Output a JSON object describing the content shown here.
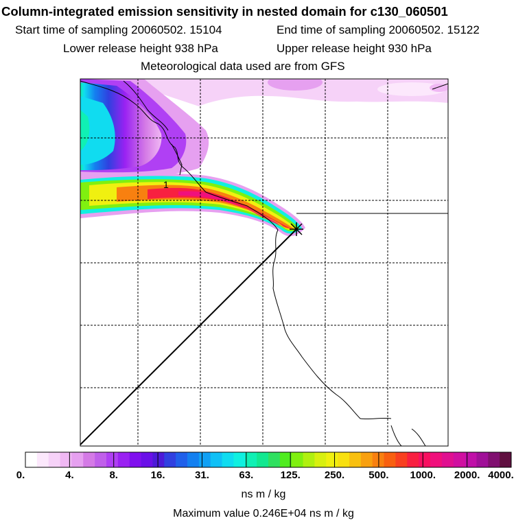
{
  "header": {
    "title": "Column-integrated emission sensitivity in nested domain for c130_060501",
    "start_time": "Start time of sampling 20060502. 15104",
    "end_time": "End time of sampling 20060502. 15122",
    "lower_height": "Lower release height  938 hPa",
    "upper_height": "Upper release height  930 hPa",
    "met_data": "Meteorological data used are from GFS"
  },
  "map": {
    "contour_label": "1"
  },
  "colorbar": {
    "labels": [
      "0.",
      "4.",
      "8.",
      "16.",
      "31.",
      "63.",
      "125.",
      "250.",
      "500.",
      "1000.",
      "2000.",
      "4000."
    ],
    "colors": [
      "#ffffff",
      "#fce8fc",
      "#f6d2f8",
      "#f0b8f4",
      "#e6a0f0",
      "#d47ae6",
      "#c060ea",
      "#b040f4",
      "#9a22f2",
      "#8010ee",
      "#6a10e8",
      "#4c1ad8",
      "#3040e0",
      "#2060ea",
      "#1480f0",
      "#10a0f4",
      "#10c0f6",
      "#10dcf0",
      "#10f0e0",
      "#10f0b4",
      "#12e890",
      "#30e060",
      "#50ec20",
      "#80f010",
      "#b0f010",
      "#d8f010",
      "#f0f010",
      "#f8e010",
      "#f8c010",
      "#f8a010",
      "#f88010",
      "#f86010",
      "#f84020",
      "#f82040",
      "#f81060",
      "#f0107c",
      "#e01090",
      "#d010a0",
      "#c010a8",
      "#a01098",
      "#801070",
      "#601040"
    ],
    "units": "ns m / kg",
    "max_value": "Maximum value  0.246E+04 ns m / kg"
  }
}
